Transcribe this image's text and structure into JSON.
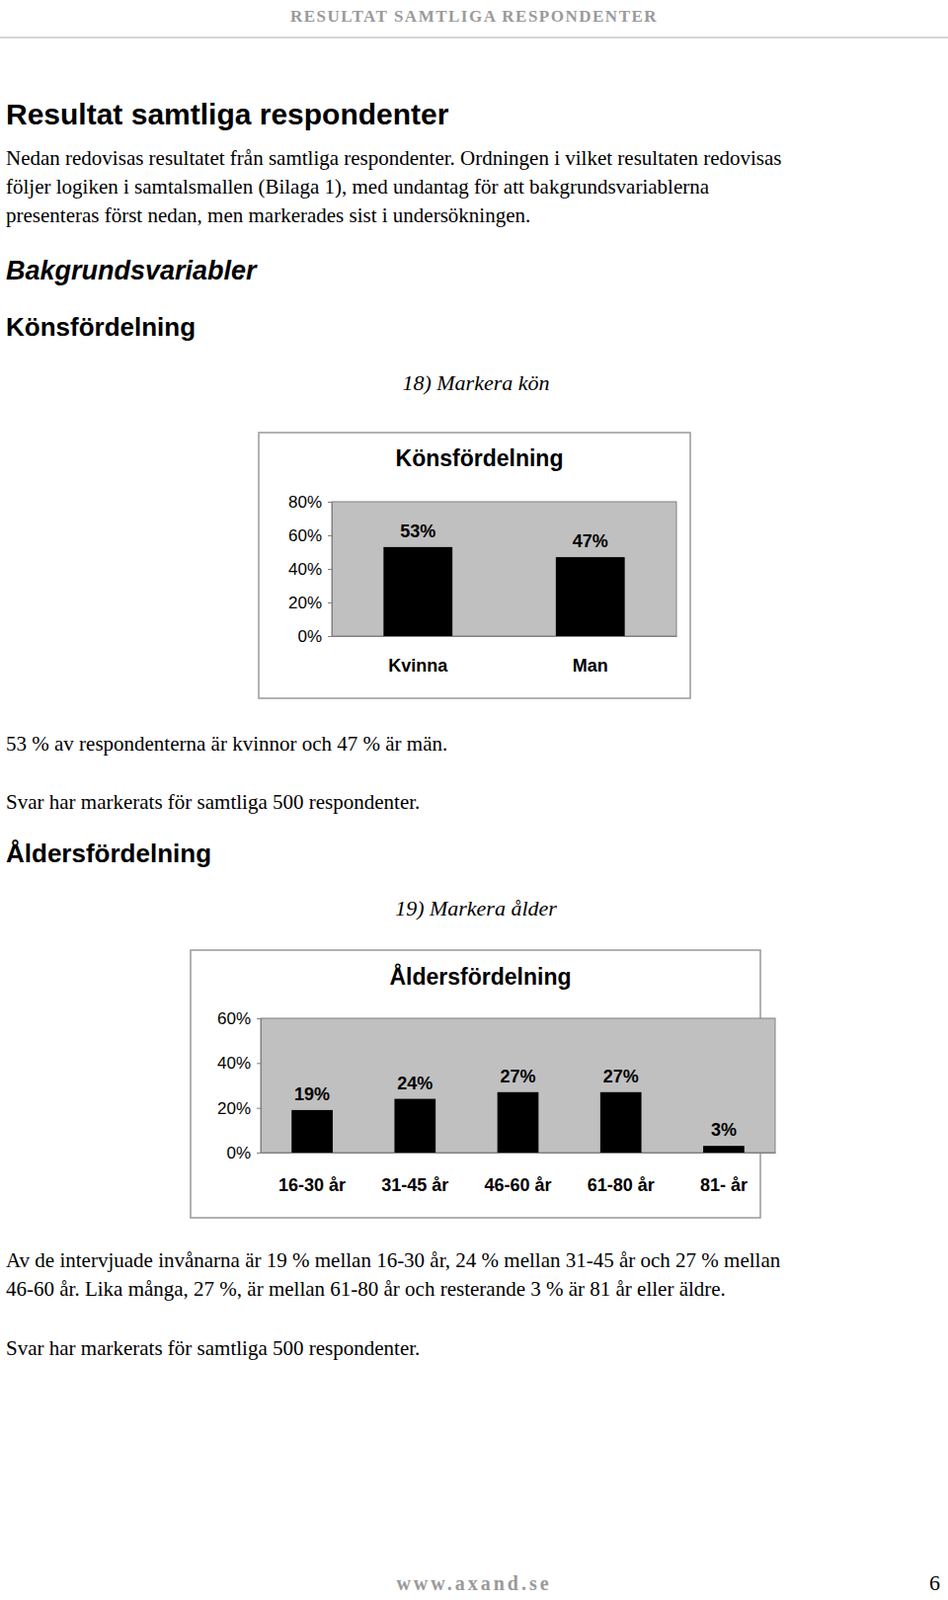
{
  "header": "RESULTAT SAMTLIGA RESPONDENTER",
  "title": "Resultat samtliga respondenter",
  "intro": [
    "Nedan redovisas resultatet från samtliga respondenter. Ordningen i vilket resultaten redovisas",
    "följer logiken i samtalsmallen (Bilaga 1), med undantag för att bakgrundsvariablerna",
    "presenteras först nedan, men markerades sist i undersökningen."
  ],
  "section_title": "Bakgrundsvariabler",
  "sections": [
    {
      "heading": "Könsfördelning",
      "question": "18) Markera kön",
      "text": [
        "53 % av respondenterna är kvinnor och 47 % är män."
      ],
      "note": "Svar har markerats för samtliga 500 respondenter."
    },
    {
      "heading": "Åldersfördelning",
      "question": "19) Markera ålder",
      "text": [
        "Av de intervjuade invånarna är 19 % mellan 16-30 år, 24 % mellan 31-45 år och 27 % mellan",
        "46-60 år. Lika många, 27 %, är mellan 61-80 år och resterande 3 % är 81 år eller äldre."
      ],
      "note": "Svar har markerats för samtliga 500 respondenter."
    }
  ],
  "chart_data": [
    {
      "type": "bar",
      "title": "Könsfördelning",
      "categories": [
        "Kvinna",
        "Man"
      ],
      "values": [
        53,
        47
      ],
      "value_labels": [
        "53%",
        "47%"
      ],
      "color": "#000000",
      "ylim": [
        0,
        80
      ],
      "yticks": [
        {
          "value": 0,
          "label": "0%"
        },
        {
          "value": 20,
          "label": "20%"
        },
        {
          "value": 40,
          "label": "40%"
        },
        {
          "value": 60,
          "label": "60%"
        },
        {
          "value": 80,
          "label": "80%"
        }
      ],
      "data_labels": true
    },
    {
      "type": "bar",
      "title": "Åldersfördelning",
      "categories": [
        "16-30 år",
        "31-45 år",
        "46-60 år",
        "61-80 år",
        "81- år"
      ],
      "values": [
        19,
        24,
        27,
        27,
        3
      ],
      "value_labels": [
        "19%",
        "24%",
        "27%",
        "27%",
        "3%"
      ],
      "color": "#000000",
      "ylim": [
        0,
        60
      ],
      "yticks": [
        {
          "value": 0,
          "label": "0%"
        },
        {
          "value": 20,
          "label": "20%"
        },
        {
          "value": 40,
          "label": "40%"
        },
        {
          "value": 60,
          "label": "60%"
        }
      ],
      "data_labels": true
    }
  ],
  "footer": {
    "url": "www.axand.se",
    "page": "6"
  }
}
